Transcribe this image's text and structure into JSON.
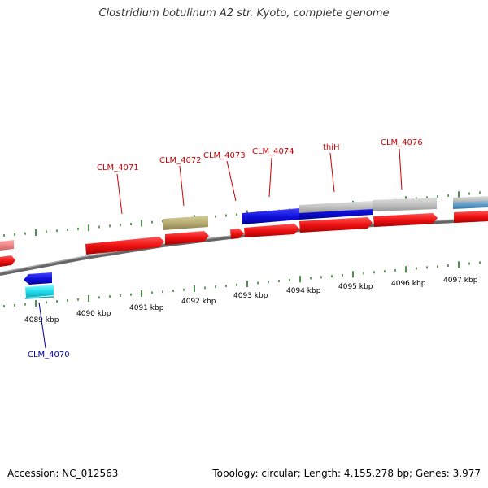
{
  "title": "Clostridium botulinum A2 str. Kyoto, complete genome",
  "footer": {
    "accession": "Accession: NC_012563",
    "topology": "Topology: circular; Length: 4,155,278 bp; Genes: 3,977"
  },
  "kbp_labels": [
    "4089 kbp",
    "4090 kbp",
    "4091 kbp",
    "4092 kbp",
    "4093 kbp",
    "4094 kbp",
    "4095 kbp",
    "4096 kbp",
    "4097 kbp"
  ],
  "gene_labels": [
    {
      "id": "CLM_4070",
      "text": "CLM_4070",
      "color": "#0000aa"
    },
    {
      "id": "CLM_4071",
      "text": "CLM_4071",
      "color": "#cc0000"
    },
    {
      "id": "CLM_4072",
      "text": "CLM_4072",
      "color": "#cc0000"
    },
    {
      "id": "CLM_4073",
      "text": "CLM_4073",
      "color": "#cc0000"
    },
    {
      "id": "CLM_4074",
      "text": "CLM_4074",
      "color": "#cc0000"
    },
    {
      "id": "thiH",
      "text": "thiH",
      "color": "#cc0000"
    },
    {
      "id": "CLM_4076",
      "text": "CLM_4076",
      "color": "#cc0000"
    }
  ],
  "colors": {
    "forward_gene": "#ee1111",
    "reverse_gene": "#1111dd",
    "cyan_feature": "#22ddee",
    "olive_feature": "#b8ad72",
    "gray_feature": "#c0c0c0",
    "pink_feature": "#ee8888",
    "backbone": "#888888",
    "tick": "#227722"
  }
}
